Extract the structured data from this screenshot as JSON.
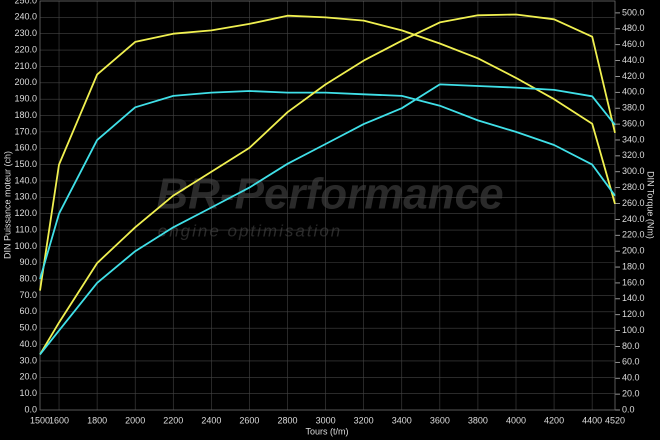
{
  "chart_data": {
    "type": "line",
    "x_label": "Tours (t/m)",
    "y_label": "DIN Puissance moteur (ch)",
    "y2_label": "DIN Torque (Nm)",
    "watermark": "BR-Performance",
    "watermark_subtitle": "engine optimisation",
    "grid": true,
    "x": [
      1500,
      1600,
      1800,
      2000,
      2200,
      2400,
      2600,
      2800,
      3000,
      3200,
      3400,
      3600,
      3800,
      4000,
      4200,
      4400,
      4520
    ],
    "xlim": [
      1500,
      4520
    ],
    "xticks": [
      1500,
      1600,
      1800,
      2000,
      2200,
      2400,
      2600,
      2800,
      3000,
      3200,
      3400,
      3600,
      3800,
      4000,
      4200,
      4400,
      4520
    ],
    "ylim": [
      0,
      250
    ],
    "yticks": [
      {
        "value": 0,
        "label": "0.0"
      },
      {
        "value": 10,
        "label": "10.0"
      },
      {
        "value": 20,
        "label": "20.0"
      },
      {
        "value": 30,
        "label": "30.0"
      },
      {
        "value": 40,
        "label": "40.0"
      },
      {
        "value": 50,
        "label": "50.0"
      },
      {
        "value": 60,
        "label": "60.0"
      },
      {
        "value": 70,
        "label": "70.0"
      },
      {
        "value": 80,
        "label": "80.0"
      },
      {
        "value": 90,
        "label": "90.0"
      },
      {
        "value": 100,
        "label": "100.0"
      },
      {
        "value": 110,
        "label": "110.0"
      },
      {
        "value": 120,
        "label": "120.0"
      },
      {
        "value": 130,
        "label": "130.0"
      },
      {
        "value": 140,
        "label": "140.0"
      },
      {
        "value": 150,
        "label": "150.0"
      },
      {
        "value": 160,
        "label": "160.0"
      },
      {
        "value": 170,
        "label": "170.0"
      },
      {
        "value": 180,
        "label": "180.0"
      },
      {
        "value": 190,
        "label": "190.0"
      },
      {
        "value": 200,
        "label": "200.0"
      },
      {
        "value": 210,
        "label": "210.0"
      },
      {
        "value": 220,
        "label": "220.0"
      },
      {
        "value": 230,
        "label": "230.0"
      },
      {
        "value": 240,
        "label": "240.0"
      },
      {
        "value": 250,
        "label": "250.0"
      }
    ],
    "y2lim": [
      0,
      515
    ],
    "y2ticks": [
      {
        "value": 0,
        "label": "0.0"
      },
      {
        "value": 20,
        "label": "20.0"
      },
      {
        "value": 40,
        "label": "40.0"
      },
      {
        "value": 60,
        "label": "60.0"
      },
      {
        "value": 80,
        "label": "80.0"
      },
      {
        "value": 100,
        "label": "100.0"
      },
      {
        "value": 120,
        "label": "120.0"
      },
      {
        "value": 140,
        "label": "140.0"
      },
      {
        "value": 160,
        "label": "160.0"
      },
      {
        "value": 180,
        "label": "180.0"
      },
      {
        "value": 200,
        "label": "200.0"
      },
      {
        "value": 220,
        "label": "220.0"
      },
      {
        "value": 240,
        "label": "240.0"
      },
      {
        "value": 260,
        "label": "260.0"
      },
      {
        "value": 280,
        "label": "280.0"
      },
      {
        "value": 300,
        "label": "300.0"
      },
      {
        "value": 320,
        "label": "320.0"
      },
      {
        "value": 340,
        "label": "340.0"
      },
      {
        "value": 360,
        "label": "360.0"
      },
      {
        "value": 380,
        "label": "380.0"
      },
      {
        "value": 400,
        "label": "400.0"
      },
      {
        "value": 420,
        "label": "420.0"
      },
      {
        "value": 440,
        "label": "440.0"
      },
      {
        "value": 460,
        "label": "460.0"
      },
      {
        "value": 480,
        "label": "480.0"
      },
      {
        "value": 500,
        "label": "500.0"
      }
    ],
    "series": [
      {
        "color": "#f0f050",
        "axis": "y",
        "values": [
          73,
          150,
          205,
          225,
          230,
          232,
          236,
          241,
          240,
          238,
          232,
          224,
          215,
          203,
          190,
          175,
          126
        ]
      },
      {
        "color": "#40e0e8",
        "axis": "y",
        "values": [
          80,
          120,
          165,
          185,
          192,
          194,
          195,
          194,
          194,
          193,
          192,
          186,
          177,
          170,
          162,
          150,
          131
        ]
      },
      {
        "color": "#f0f050",
        "axis": "y2",
        "values": [
          70,
          110,
          185,
          230,
          270,
          300,
          330,
          375,
          410,
          440,
          465,
          488,
          497,
          498,
          492,
          470,
          349
        ]
      },
      {
        "color": "#40e0e8",
        "axis": "y2",
        "values": [
          70,
          100,
          160,
          200,
          230,
          255,
          280,
          310,
          335,
          360,
          380,
          410,
          408,
          406,
          403,
          395,
          359
        ]
      }
    ]
  }
}
